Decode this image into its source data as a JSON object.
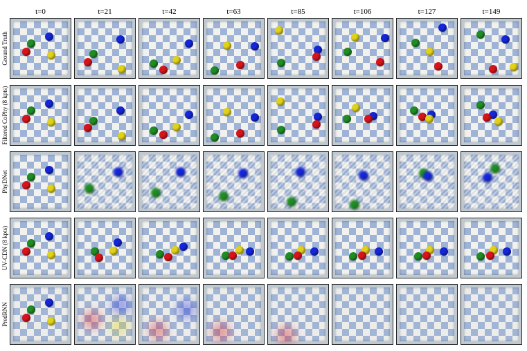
{
  "timesteps": [
    "t=0",
    "t=21",
    "t=42",
    "t=63",
    "t=85",
    "t=106",
    "t=127",
    "t=149"
  ],
  "colors": {
    "red": "#d8141b",
    "green": "#1f8c24",
    "blue": "#1426d8",
    "yellow": "#e0d21a"
  },
  "rows": [
    {
      "label": "Ground Truth",
      "style": "sharp",
      "frames": [
        [
          [
            "blue",
            0.69,
            0.24
          ],
          [
            "green",
            0.3,
            0.4
          ],
          [
            "red",
            0.2,
            0.58
          ],
          [
            "yellow",
            0.73,
            0.65
          ]
        ],
        [
          [
            "blue",
            0.84,
            0.3
          ],
          [
            "green",
            0.26,
            0.62
          ],
          [
            "red",
            0.13,
            0.8
          ],
          [
            "yellow",
            0.86,
            0.95
          ]
        ],
        [
          [
            "blue",
            0.93,
            0.4
          ],
          [
            "yellow",
            0.65,
            0.76
          ],
          [
            "green",
            0.16,
            0.84
          ],
          [
            "red",
            0.38,
            0.97
          ]
        ],
        [
          [
            "blue",
            0.96,
            0.46
          ],
          [
            "yellow",
            0.36,
            0.44
          ],
          [
            "red",
            0.64,
            0.87
          ],
          [
            "green",
            0.09,
            0.99
          ]
        ],
        [
          [
            "yellow",
            0.09,
            0.1
          ],
          [
            "blue",
            0.92,
            0.53
          ],
          [
            "red",
            0.9,
            0.68
          ],
          [
            "green",
            0.13,
            0.82
          ]
        ],
        [
          [
            "blue",
            0.98,
            0.27
          ],
          [
            "yellow",
            0.34,
            0.25
          ],
          [
            "green",
            0.18,
            0.58
          ],
          [
            "red",
            0.88,
            0.81
          ]
        ],
        [
          [
            "blue",
            0.84,
            0.05
          ],
          [
            "green",
            0.26,
            0.38
          ],
          [
            "yellow",
            0.57,
            0.57
          ],
          [
            "red",
            0.74,
            0.9
          ]
        ],
        [
          [
            "green",
            0.27,
            0.19
          ],
          [
            "blue",
            0.8,
            0.3
          ],
          [
            "yellow",
            0.99,
            0.91
          ],
          [
            "red",
            0.53,
            0.96
          ]
        ]
      ]
    },
    {
      "label": "Filtered CoPhy (8 kpts)",
      "style": "sharp",
      "frames": [
        [
          [
            "blue",
            0.69,
            0.24
          ],
          [
            "green",
            0.3,
            0.4
          ],
          [
            "red",
            0.2,
            0.58
          ],
          [
            "yellow",
            0.73,
            0.65
          ]
        ],
        [
          [
            "blue",
            0.84,
            0.4
          ],
          [
            "green",
            0.26,
            0.62
          ],
          [
            "red",
            0.13,
            0.77
          ],
          [
            "yellow",
            0.86,
            0.95
          ]
        ],
        [
          [
            "blue",
            0.93,
            0.49
          ],
          [
            "yellow",
            0.65,
            0.76
          ],
          [
            "green",
            0.16,
            0.84
          ],
          [
            "red",
            0.38,
            0.92
          ]
        ],
        [
          [
            "blue",
            0.96,
            0.54
          ],
          [
            "yellow",
            0.36,
            0.43
          ],
          [
            "red",
            0.64,
            0.89
          ],
          [
            "green",
            0.09,
            0.99
          ]
        ],
        [
          [
            "yellow",
            0.12,
            0.2
          ],
          [
            "blue",
            0.92,
            0.53
          ],
          [
            "red",
            0.9,
            0.7
          ],
          [
            "green",
            0.13,
            0.82
          ]
        ],
        [
          [
            "yellow",
            0.36,
            0.33
          ],
          [
            "blue",
            0.73,
            0.51
          ],
          [
            "red",
            0.62,
            0.57
          ],
          [
            "green",
            0.16,
            0.58
          ]
        ],
        [
          [
            "green",
            0.22,
            0.4
          ],
          [
            "red",
            0.4,
            0.53
          ],
          [
            "blue",
            0.6,
            0.48
          ],
          [
            "yellow",
            0.55,
            0.58
          ]
        ],
        [
          [
            "green",
            0.27,
            0.28
          ],
          [
            "blue",
            0.53,
            0.48
          ],
          [
            "red",
            0.41,
            0.54
          ],
          [
            "yellow",
            0.66,
            0.64
          ]
        ]
      ]
    },
    {
      "label": "PhyDNet",
      "style": "blurry",
      "frames": [
        [
          [
            "blue",
            0.69,
            0.24
          ],
          [
            "green",
            0.3,
            0.4
          ],
          [
            "red",
            0.2,
            0.58
          ],
          [
            "yellow",
            0.73,
            0.65
          ]
        ],
        [
          [
            "blue",
            0.78,
            0.28
          ],
          [
            "green",
            0.15,
            0.64
          ]
        ],
        [
          [
            "blue",
            0.73,
            0.28
          ],
          [
            "green",
            0.19,
            0.72
          ]
        ],
        [
          [
            "blue",
            0.68,
            0.3
          ],
          [
            "green",
            0.27,
            0.8
          ]
        ],
        [
          [
            "blue",
            0.53,
            0.28
          ],
          [
            "green",
            0.34,
            0.92
          ]
        ],
        [
          [
            "blue",
            0.5,
            0.35
          ],
          [
            "green",
            0.32,
            0.99
          ]
        ],
        [
          [
            "green",
            0.42,
            0.3
          ],
          [
            "blue",
            0.51,
            0.37
          ]
        ],
        [
          [
            "green",
            0.57,
            0.2
          ],
          [
            "blue",
            0.4,
            0.4
          ]
        ]
      ]
    },
    {
      "label": "UV-CDN (8 kpts)",
      "style": "sharp",
      "frames": [
        [
          [
            "blue",
            0.69,
            0.24
          ],
          [
            "green",
            0.3,
            0.4
          ],
          [
            "red",
            0.2,
            0.58
          ],
          [
            "yellow",
            0.73,
            0.65
          ]
        ],
        [
          [
            "blue",
            0.78,
            0.38
          ],
          [
            "yellow",
            0.69,
            0.56
          ],
          [
            "green",
            0.29,
            0.58
          ],
          [
            "red",
            0.38,
            0.71
          ]
        ],
        [
          [
            "blue",
            0.8,
            0.47
          ],
          [
            "yellow",
            0.63,
            0.55
          ],
          [
            "green",
            0.3,
            0.64
          ],
          [
            "red",
            0.48,
            0.7
          ]
        ],
        [
          [
            "yellow",
            0.63,
            0.55
          ],
          [
            "blue",
            0.85,
            0.58
          ],
          [
            "green",
            0.33,
            0.67
          ],
          [
            "red",
            0.48,
            0.67
          ]
        ],
        [
          [
            "yellow",
            0.56,
            0.55
          ],
          [
            "blue",
            0.85,
            0.58
          ],
          [
            "red",
            0.49,
            0.66
          ],
          [
            "green",
            0.31,
            0.68
          ]
        ],
        [
          [
            "yellow",
            0.57,
            0.55
          ],
          [
            "blue",
            0.85,
            0.58
          ],
          [
            "red",
            0.49,
            0.66
          ],
          [
            "green",
            0.3,
            0.68
          ]
        ],
        [
          [
            "yellow",
            0.56,
            0.55
          ],
          [
            "blue",
            0.86,
            0.58
          ],
          [
            "red",
            0.49,
            0.66
          ],
          [
            "green",
            0.31,
            0.68
          ]
        ],
        [
          [
            "yellow",
            0.55,
            0.55
          ],
          [
            "blue",
            0.84,
            0.58
          ],
          [
            "red",
            0.48,
            0.66
          ],
          [
            "green",
            0.27,
            0.68
          ]
        ]
      ]
    },
    {
      "label": "PredRNN",
      "style": "faded",
      "frames": [
        [
          [
            "blue",
            0.69,
            0.24
          ],
          [
            "green",
            0.3,
            0.4
          ],
          [
            "red",
            0.2,
            0.58
          ],
          [
            "yellow",
            0.73,
            0.65
          ]
        ],
        [
          [
            "blue",
            0.84,
            0.3
          ],
          [
            "red",
            0.22,
            0.62
          ],
          [
            "yellow",
            0.8,
            0.75
          ]
        ],
        [
          [
            "blue",
            0.87,
            0.4
          ],
          [
            "red",
            0.26,
            0.85
          ]
        ],
        [
          [
            "red",
            0.22,
            0.88
          ]
        ],
        [
          [
            "red",
            0.24,
            0.95
          ]
        ],
        [],
        [],
        []
      ]
    }
  ]
}
